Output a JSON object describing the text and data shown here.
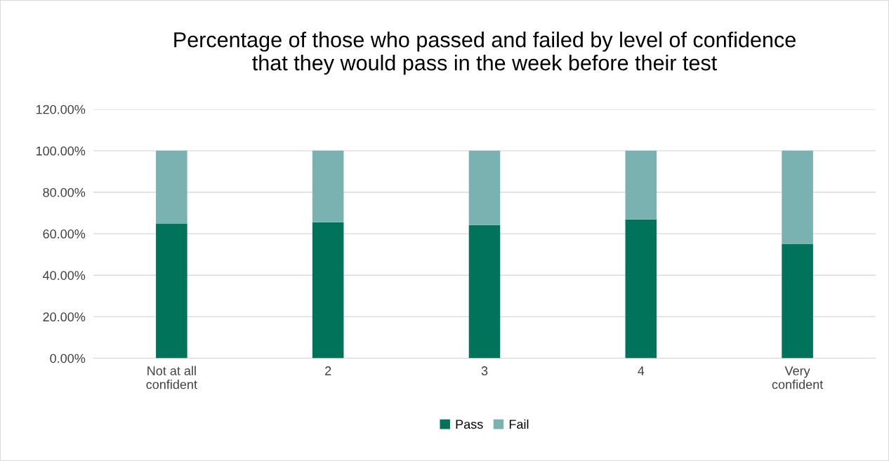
{
  "chart_data": {
    "type": "bar",
    "title": "Percentage of those who passed and failed by level of confidence\nthat they would pass in the week before their test",
    "categories": [
      "Not at all\nconfident",
      "2",
      "3",
      "4",
      "Very\nconfident"
    ],
    "series": [
      {
        "name": "Pass",
        "color": "#00735a",
        "values": [
          64.9,
          65.5,
          64.2,
          66.9,
          55.1
        ]
      },
      {
        "name": "Fail",
        "color": "#7ab2b1",
        "values": [
          35.1,
          34.5,
          35.8,
          33.1,
          44.9
        ]
      }
    ],
    "stacked": true,
    "ylim": [
      0,
      120
    ],
    "yticks": [
      {
        "value": 0,
        "label": "0.00%"
      },
      {
        "value": 20,
        "label": "20.00%"
      },
      {
        "value": 40,
        "label": "40.00%"
      },
      {
        "value": 60,
        "label": "60.00%"
      },
      {
        "value": 80,
        "label": "80.00%"
      },
      {
        "value": 100,
        "label": "100.00%"
      },
      {
        "value": 120,
        "label": "120.00%"
      }
    ],
    "grid": "y",
    "legend": "bottom"
  }
}
